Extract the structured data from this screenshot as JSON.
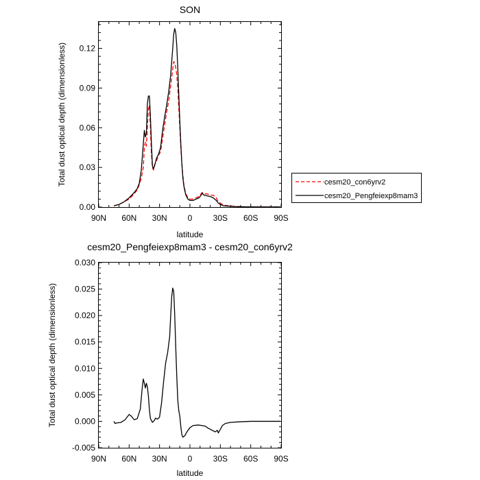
{
  "chart_data": [
    {
      "type": "line",
      "title": "SON",
      "xlabel": "latitude",
      "ylabel": "Total dust optical depth (dimensionless)",
      "xlim": [
        90,
        -90
      ],
      "ylim": [
        0,
        0.14
      ],
      "x_ticks": [
        {
          "value": 90,
          "label": "90N"
        },
        {
          "value": 60,
          "label": "60N"
        },
        {
          "value": 30,
          "label": "30N"
        },
        {
          "value": 0,
          "label": "0"
        },
        {
          "value": -30,
          "label": "30S"
        },
        {
          "value": -60,
          "label": "60S"
        },
        {
          "value": -90,
          "label": "90S"
        }
      ],
      "y_ticks": [
        {
          "value": 0,
          "label": "0.00"
        },
        {
          "value": 0.03,
          "label": "0.03"
        },
        {
          "value": 0.06,
          "label": "0.06"
        },
        {
          "value": 0.09,
          "label": "0.09"
        },
        {
          "value": 0.12,
          "label": "0.12"
        }
      ],
      "legend": {
        "placement": "right"
      },
      "series": [
        {
          "name": "cesm20_con6yrv2",
          "color": "#ff0000",
          "dash": "dashed",
          "points": [
            [
              75,
              0.001
            ],
            [
              70,
              0.002
            ],
            [
              65,
              0.004
            ],
            [
              60,
              0.006
            ],
            [
              55,
              0.01
            ],
            [
              52,
              0.013
            ],
            [
              50,
              0.017
            ],
            [
              48,
              0.022
            ],
            [
              46,
              0.03
            ],
            [
              45,
              0.045
            ],
            [
              44,
              0.049
            ],
            [
              43,
              0.046
            ],
            [
              42,
              0.06
            ],
            [
              41,
              0.074
            ],
            [
              40,
              0.077
            ],
            [
              39,
              0.06
            ],
            [
              38,
              0.04
            ],
            [
              37,
              0.03
            ],
            [
              36,
              0.028
            ],
            [
              35,
              0.032
            ],
            [
              33,
              0.035
            ],
            [
              31,
              0.039
            ],
            [
              29,
              0.042
            ],
            [
              27,
              0.052
            ],
            [
              25,
              0.062
            ],
            [
              23,
              0.072
            ],
            [
              21,
              0.08
            ],
            [
              19,
              0.092
            ],
            [
              17,
              0.104
            ],
            [
              16,
              0.11
            ],
            [
              15,
              0.109
            ],
            [
              14,
              0.105
            ],
            [
              13,
              0.1
            ],
            [
              12,
              0.09
            ],
            [
              11,
              0.075
            ],
            [
              10,
              0.06
            ],
            [
              9,
              0.045
            ],
            [
              8,
              0.033
            ],
            [
              7,
              0.024
            ],
            [
              6,
              0.017
            ],
            [
              5,
              0.013
            ],
            [
              4,
              0.01
            ],
            [
              2,
              0.007
            ],
            [
              0,
              0.006
            ],
            [
              -3,
              0.006
            ],
            [
              -6,
              0.007
            ],
            [
              -9,
              0.008
            ],
            [
              -11,
              0.01
            ],
            [
              -12,
              0.011
            ],
            [
              -14,
              0.01
            ],
            [
              -17,
              0.01
            ],
            [
              -20,
              0.009
            ],
            [
              -23,
              0.009
            ],
            [
              -26,
              0.007
            ],
            [
              -28,
              0.004
            ],
            [
              -30,
              0.003
            ],
            [
              -33,
              0.0015
            ],
            [
              -38,
              0.001
            ],
            [
              -45,
              0.0005
            ],
            [
              -55,
              0.0002
            ],
            [
              -70,
              0.0001
            ],
            [
              -89,
              0.0001
            ]
          ]
        },
        {
          "name": "cesm20_Pengfeiexp8mam3",
          "color": "#000000",
          "dash": "solid",
          "points": [
            [
              75,
              0.001
            ],
            [
              70,
              0.002
            ],
            [
              65,
              0.004
            ],
            [
              60,
              0.007
            ],
            [
              55,
              0.011
            ],
            [
              52,
              0.014
            ],
            [
              50,
              0.018
            ],
            [
              48,
              0.028
            ],
            [
              46,
              0.048
            ],
            [
              45,
              0.058
            ],
            [
              44,
              0.053
            ],
            [
              43,
              0.056
            ],
            [
              42,
              0.078
            ],
            [
              41,
              0.084
            ],
            [
              40,
              0.084
            ],
            [
              39,
              0.068
            ],
            [
              38,
              0.048
            ],
            [
              37,
              0.031
            ],
            [
              36,
              0.029
            ],
            [
              35,
              0.031
            ],
            [
              33,
              0.037
            ],
            [
              31,
              0.04
            ],
            [
              29,
              0.045
            ],
            [
              27,
              0.058
            ],
            [
              25,
              0.068
            ],
            [
              23,
              0.077
            ],
            [
              21,
              0.087
            ],
            [
              19,
              0.1
            ],
            [
              17,
              0.12
            ],
            [
              16,
              0.131
            ],
            [
              15,
              0.135
            ],
            [
              14,
              0.132
            ],
            [
              13,
              0.122
            ],
            [
              12,
              0.105
            ],
            [
              11,
              0.085
            ],
            [
              10,
              0.065
            ],
            [
              9,
              0.048
            ],
            [
              8,
              0.033
            ],
            [
              7,
              0.022
            ],
            [
              6,
              0.016
            ],
            [
              5,
              0.012
            ],
            [
              4,
              0.009
            ],
            [
              2,
              0.006
            ],
            [
              0,
              0.005
            ],
            [
              -3,
              0.005
            ],
            [
              -6,
              0.006
            ],
            [
              -9,
              0.007
            ],
            [
              -11,
              0.009
            ],
            [
              -12,
              0.0105
            ],
            [
              -14,
              0.009
            ],
            [
              -17,
              0.0085
            ],
            [
              -20,
              0.008
            ],
            [
              -23,
              0.007
            ],
            [
              -26,
              0.005
            ],
            [
              -28,
              0.003
            ],
            [
              -30,
              0.002
            ],
            [
              -33,
              0.001
            ],
            [
              -38,
              0.0007
            ],
            [
              -45,
              0.0004
            ],
            [
              -55,
              0.0002
            ],
            [
              -70,
              0.0001
            ],
            [
              -89,
              0.0001
            ]
          ]
        }
      ]
    },
    {
      "type": "line",
      "title": "cesm20_Pengfeiexp8mam3 - cesm20_con6yrv2",
      "xlabel": "latitude",
      "ylabel": "Total dust optical depth (dimensionless)",
      "xlim": [
        90,
        -90
      ],
      "ylim": [
        -0.005,
        0.03
      ],
      "x_ticks": [
        {
          "value": 90,
          "label": "90N"
        },
        {
          "value": 60,
          "label": "60N"
        },
        {
          "value": 30,
          "label": "30N"
        },
        {
          "value": 0,
          "label": "0"
        },
        {
          "value": -30,
          "label": "30S"
        },
        {
          "value": -60,
          "label": "60S"
        },
        {
          "value": -90,
          "label": "90S"
        }
      ],
      "y_ticks": [
        {
          "value": -0.005,
          "label": "-0.005"
        },
        {
          "value": 0,
          "label": "0.000"
        },
        {
          "value": 0.005,
          "label": "0.005"
        },
        {
          "value": 0.01,
          "label": "0.010"
        },
        {
          "value": 0.015,
          "label": "0.015"
        },
        {
          "value": 0.02,
          "label": "0.020"
        },
        {
          "value": 0.025,
          "label": "0.025"
        },
        {
          "value": 0.03,
          "label": "0.030"
        }
      ],
      "series": [
        {
          "color": "#000000",
          "dash": "solid",
          "points": [
            [
              75,
              0.0
            ],
            [
              74,
              -0.0004
            ],
            [
              72,
              -0.0003
            ],
            [
              68,
              -0.0002
            ],
            [
              64,
              0.0003
            ],
            [
              60,
              0.0013
            ],
            [
              58,
              0.001
            ],
            [
              55,
              0.0003
            ],
            [
              52,
              0.0005
            ],
            [
              49,
              0.0023
            ],
            [
              47,
              0.0065
            ],
            [
              46,
              0.008
            ],
            [
              45,
              0.0072
            ],
            [
              44,
              0.0063
            ],
            [
              43,
              0.0072
            ],
            [
              42,
              0.0065
            ],
            [
              41,
              0.0048
            ],
            [
              40,
              0.0022
            ],
            [
              39,
              0.0005
            ],
            [
              37,
              -0.0002
            ],
            [
              35,
              0.0002
            ],
            [
              34,
              0.0006
            ],
            [
              32,
              0.0004
            ],
            [
              30,
              0.0008
            ],
            [
              28,
              0.0035
            ],
            [
              26,
              0.0075
            ],
            [
              24,
              0.011
            ],
            [
              22,
              0.013
            ],
            [
              20,
              0.016
            ],
            [
              19,
              0.02
            ],
            [
              18,
              0.0235
            ],
            [
              17,
              0.0252
            ],
            [
              16,
              0.0245
            ],
            [
              15,
              0.02
            ],
            [
              14,
              0.014
            ],
            [
              13,
              0.0085
            ],
            [
              12,
              0.004
            ],
            [
              11,
              0.002
            ],
            [
              10,
              0.001
            ],
            [
              9,
              -0.001
            ],
            [
              8,
              -0.0025
            ],
            [
              7,
              -0.003
            ],
            [
              5,
              -0.0027
            ],
            [
              3,
              -0.002
            ],
            [
              0,
              -0.0012
            ],
            [
              -3,
              -0.0008
            ],
            [
              -8,
              -0.0007
            ],
            [
              -12,
              -0.0008
            ],
            [
              -15,
              -0.0009
            ],
            [
              -18,
              -0.0013
            ],
            [
              -22,
              -0.0017
            ],
            [
              -25,
              -0.002
            ],
            [
              -27,
              -0.0017
            ],
            [
              -28,
              -0.0022
            ],
            [
              -30,
              -0.0015
            ],
            [
              -32,
              -0.0008
            ],
            [
              -35,
              -0.0004
            ],
            [
              -40,
              -0.0002
            ],
            [
              -48,
              -0.0001
            ],
            [
              -60,
              0.0
            ],
            [
              -89,
              0.0
            ]
          ]
        }
      ]
    }
  ]
}
